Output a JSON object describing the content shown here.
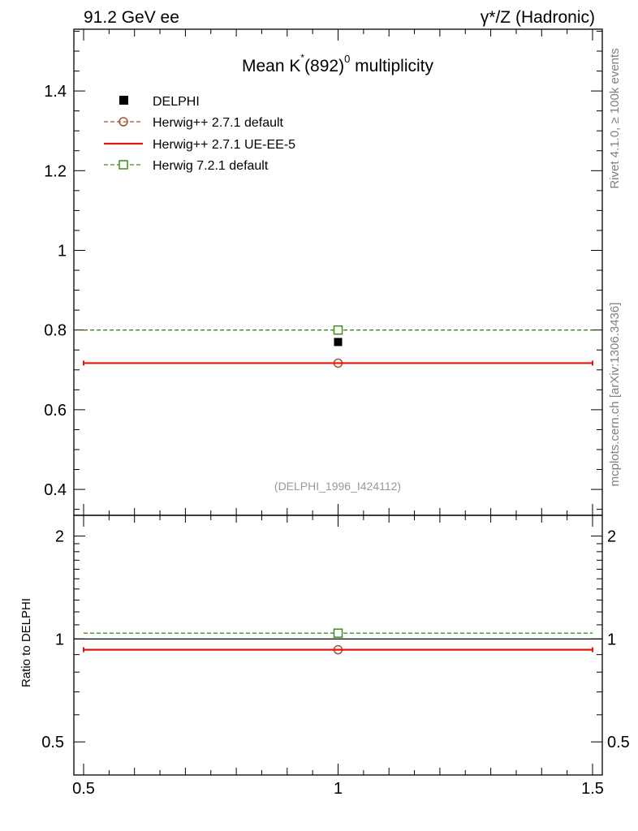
{
  "header": {
    "left": "91.2 GeV ee",
    "right": "γ*/Z (Hadronic)"
  },
  "side_text": {
    "rivet": "Rivet 4.1.0, ≥ 100k events",
    "mcplots": "mcplots.cern.ch [arXiv:1306.3436]"
  },
  "chart_data": [
    {
      "type": "scatter",
      "title_parts": {
        "base": "Mean K",
        "sup1": "*",
        "mid": "(892)",
        "sup2": "0",
        "tail": " multiplicity"
      },
      "analysis_label": "(DELPHI_1996_I424112)",
      "xlim": [
        0.5,
        1.5
      ],
      "ylim": [
        0.335,
        1.555
      ],
      "yticks": [
        0.4,
        0.6,
        0.8,
        1,
        1.2,
        1.4
      ],
      "ytick_labels": [
        "0.4",
        "0.6",
        "0.8",
        "1",
        "1.2",
        "1.4"
      ],
      "series": [
        {
          "name": "DELPHI",
          "kind": "data",
          "color": "#000000",
          "x": 1.0,
          "y": 0.77
        },
        {
          "name": "Herwig++ 2.7.1 default",
          "kind": "mc",
          "color": "#a0522d",
          "marker": "circle",
          "dash": true,
          "x": 1.0,
          "y": 0.717,
          "xrange": [
            0.5,
            1.5
          ]
        },
        {
          "name": "Herwig++ 2.7.1 UE-EE-5",
          "kind": "mc",
          "color": "#e8140f",
          "marker": "none",
          "dash": false,
          "x": 1.0,
          "y": 0.717,
          "xrange": [
            0.5,
            1.5
          ]
        },
        {
          "name": "Herwig 7.2.1 default",
          "kind": "mc",
          "color": "#3c8c1e",
          "marker": "square",
          "dash": true,
          "x": 1.0,
          "y": 0.8,
          "xrange": [
            0.5,
            1.5
          ]
        }
      ]
    },
    {
      "type": "scatter",
      "ylabel": "Ratio to DELPHI",
      "xlim": [
        0.5,
        1.5
      ],
      "ylim": [
        0.4,
        2.3
      ],
      "yscale": "log",
      "xticks": [
        0.5,
        1,
        1.5
      ],
      "xtick_labels": [
        "0.5",
        "1",
        "1.5"
      ],
      "yticks": [
        0.5,
        1,
        2
      ],
      "ytick_labels": [
        "0.5",
        "1",
        "2"
      ],
      "reference": 1.0,
      "series": [
        {
          "name": "Herwig++ 2.7.1 default",
          "color": "#a0522d",
          "marker": "circle",
          "dash": true,
          "y": 0.93
        },
        {
          "name": "Herwig++ 2.7.1 UE-EE-5",
          "color": "#e8140f",
          "marker": "none",
          "dash": false,
          "y": 0.93
        },
        {
          "name": "Herwig 7.2.1 default",
          "color": "#3c8c1e",
          "marker": "square",
          "dash": true,
          "y": 1.04
        }
      ]
    }
  ]
}
